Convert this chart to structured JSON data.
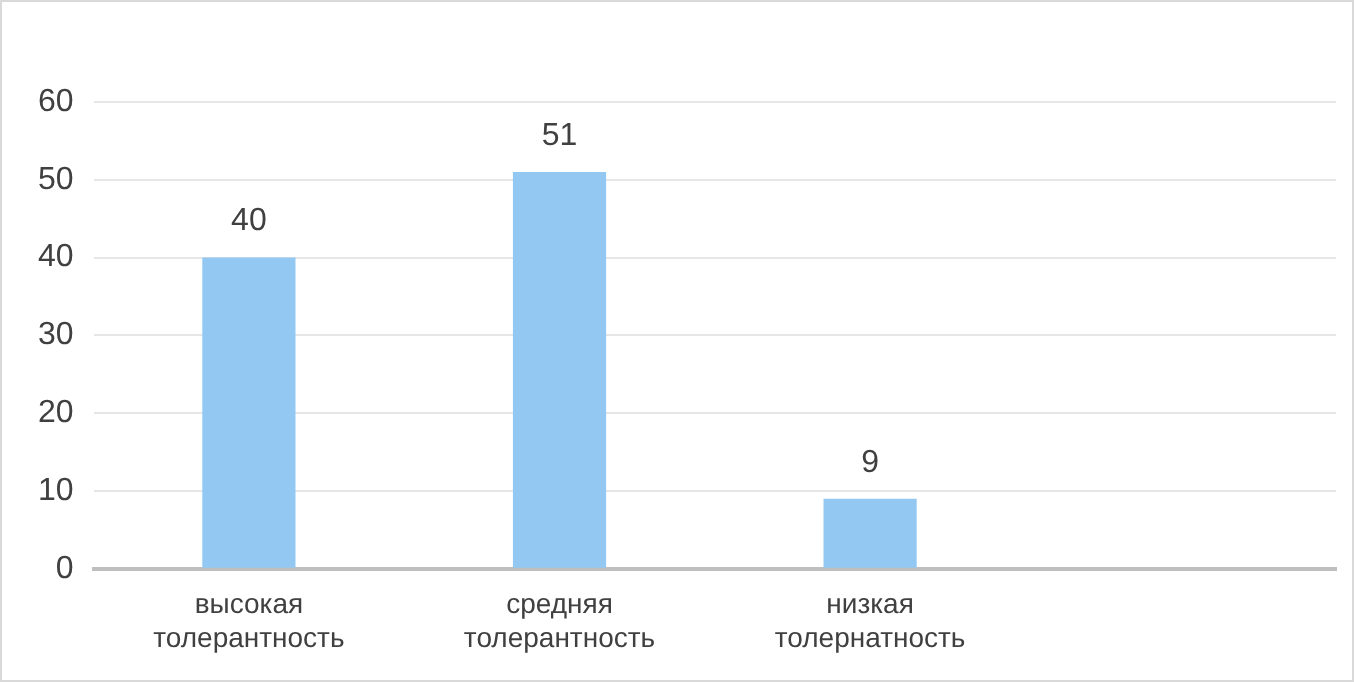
{
  "chart_data": {
    "type": "bar",
    "categories": [
      "высокая толерантность",
      "средняя толерантность",
      "низкая толернатность",
      null
    ],
    "values": [
      40,
      51,
      9,
      null
    ],
    "color": "#92c8f2",
    "ylim": [
      0,
      60
    ],
    "yticks": [
      0,
      10,
      20,
      30,
      40,
      50,
      60
    ],
    "grid": "y",
    "data_labels": true,
    "legend": false
  }
}
